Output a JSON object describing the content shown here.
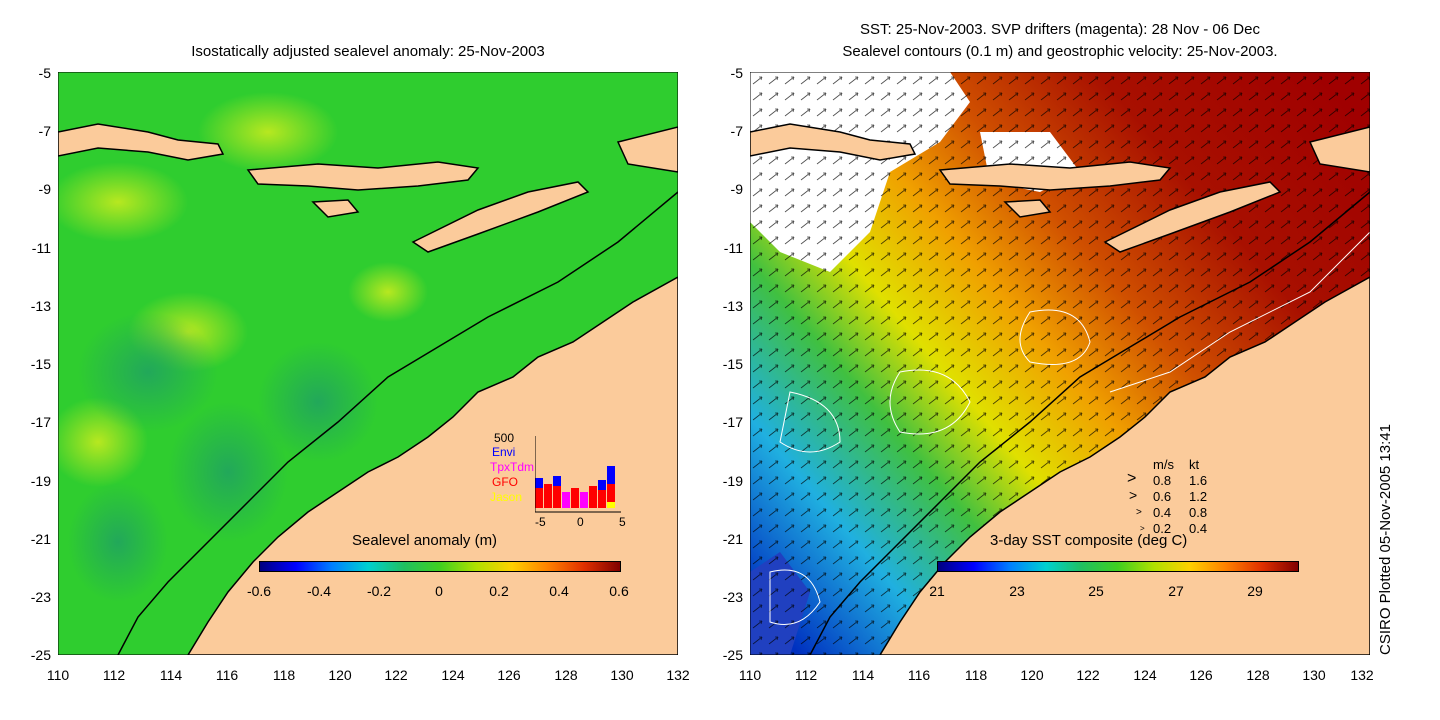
{
  "left_panel": {
    "title": "Isostatically adjusted sealevel anomaly: 25-Nov-2003",
    "y_ticks": [
      "-5",
      "-7",
      "-9",
      "-11",
      "-13",
      "-15",
      "-17",
      "-19",
      "-21",
      "-23",
      "-25"
    ],
    "x_ticks": [
      "110",
      "112",
      "114",
      "116",
      "118",
      "120",
      "122",
      "124",
      "126",
      "128",
      "130",
      "132"
    ],
    "colorbar_title": "Sealevel anomaly (m)",
    "colorbar_labels": [
      "-0.6",
      "-0.4",
      "-0.2",
      "0",
      "0.2",
      "0.4",
      "0.6"
    ],
    "inset": {
      "y_label": "500",
      "series": [
        {
          "name": "Envi",
          "color": "#0000ff"
        },
        {
          "name": "TpxTdm",
          "color": "#ff00ff"
        },
        {
          "name": "GFO",
          "color": "#ff0000"
        },
        {
          "name": "Jason",
          "color": "#ffff00"
        }
      ],
      "x_labels": [
        "-5",
        "0",
        "5"
      ]
    }
  },
  "right_panel": {
    "title_line1": "SST: 25-Nov-2003. SVP drifters (magenta): 28 Nov - 06 Dec",
    "title_line2": "Sealevel contours (0.1 m) and geostrophic velocity: 25-Nov-2003.",
    "y_ticks": [
      "-5",
      "-7",
      "-9",
      "-11",
      "-13",
      "-15",
      "-17",
      "-19",
      "-21",
      "-23",
      "-25"
    ],
    "x_ticks": [
      "110",
      "112",
      "114",
      "116",
      "118",
      "120",
      "122",
      "124",
      "126",
      "128",
      "130",
      "132"
    ],
    "colorbar_title": "3-day SST composite (deg C)",
    "colorbar_labels": [
      "21",
      "23",
      "25",
      "27",
      "29"
    ],
    "velocity_legend": {
      "header_ms": "m/s",
      "header_kt": "kt",
      "rows": [
        {
          "ms": "0.8",
          "kt": "1.6"
        },
        {
          "ms": "0.6",
          "kt": "1.2"
        },
        {
          "ms": "0.4",
          "kt": "0.8"
        },
        {
          "ms": "0.2",
          "kt": "0.4"
        }
      ]
    }
  },
  "credit": "CSIRO Plotted 05-Nov-2005 13:41",
  "colors": {
    "land": "#fbcb9b",
    "ocean_sla": "#2fcd2f",
    "sst_hot": "#a80000"
  }
}
